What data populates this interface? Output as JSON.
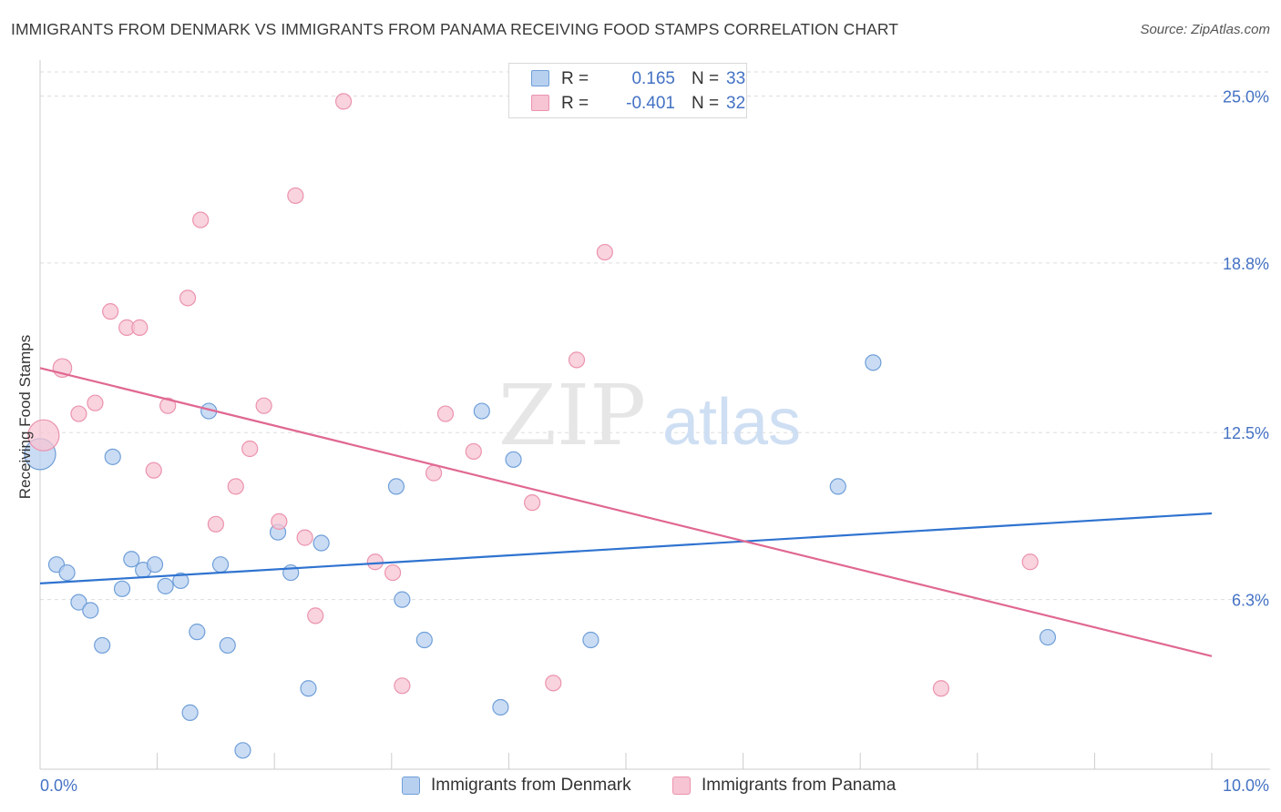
{
  "header": {
    "title": "IMMIGRANTS FROM DENMARK VS IMMIGRANTS FROM PANAMA RECEIVING FOOD STAMPS CORRELATION CHART",
    "source": "Source: ZipAtlas.com"
  },
  "watermark": {
    "zip": "ZIP",
    "atlas": "atlas"
  },
  "legend": {
    "rows": [
      {
        "r_label": "R =",
        "r_value": "0.165",
        "n_label": "N =",
        "n_value": "33"
      },
      {
        "r_label": "R =",
        "r_value": "-0.401",
        "n_label": "N =",
        "n_value": "32"
      }
    ]
  },
  "bottom_legend": {
    "denmark": "Immigrants from Denmark",
    "panama": "Immigrants from Panama"
  },
  "colors": {
    "denmark_fill": "#b8d0f0",
    "denmark_stroke": "#6f9fd8",
    "denmark_line": "#2f73d0",
    "panama_fill": "#f7c4d3",
    "panama_stroke": "#eb93ae",
    "panama_line": "#e06892",
    "tick_text": "#4472c4",
    "grid": "#dddddd"
  },
  "chart_data": {
    "type": "scatter",
    "title": "IMMIGRANTS FROM DENMARK VS IMMIGRANTS FROM PANAMA RECEIVING FOOD STAMPS CORRELATION CHART",
    "xlabel": "",
    "ylabel": "Receiving Food Stamps",
    "xlim": [
      0,
      10
    ],
    "ylim": [
      0,
      26.2
    ],
    "x_tick_labels": [
      "0.0%",
      "10.0%"
    ],
    "y_ticks": [
      6.3,
      12.5,
      18.8,
      25.0
    ],
    "y_tick_labels": [
      "6.3%",
      "12.5%",
      "18.8%",
      "25.0%"
    ],
    "grid": "horizontal dashed",
    "legend_position": "top-center",
    "series": [
      {
        "name": "Immigrants from Denmark",
        "r": 0.165,
        "n": 33,
        "trend": [
          [
            0,
            6.9
          ],
          [
            10,
            9.5
          ]
        ],
        "points": [
          [
            0.0,
            11.7,
            2
          ],
          [
            0.14,
            7.6,
            1
          ],
          [
            0.23,
            7.3,
            1
          ],
          [
            0.33,
            6.2,
            1
          ],
          [
            0.43,
            5.9,
            1
          ],
          [
            0.53,
            4.6,
            1
          ],
          [
            0.62,
            11.6,
            1
          ],
          [
            0.7,
            6.7,
            1
          ],
          [
            0.78,
            7.8,
            1
          ],
          [
            0.88,
            7.4,
            1
          ],
          [
            0.98,
            7.6,
            1
          ],
          [
            1.07,
            6.8,
            1
          ],
          [
            1.2,
            7.0,
            1
          ],
          [
            1.28,
            2.1,
            1
          ],
          [
            1.34,
            5.1,
            1
          ],
          [
            1.44,
            13.3,
            1
          ],
          [
            1.54,
            7.6,
            1
          ],
          [
            1.6,
            4.6,
            1
          ],
          [
            1.73,
            0.7,
            1
          ],
          [
            2.03,
            8.8,
            1
          ],
          [
            2.14,
            7.3,
            1
          ],
          [
            2.29,
            3.0,
            1
          ],
          [
            2.4,
            8.4,
            1
          ],
          [
            3.04,
            10.5,
            1
          ],
          [
            3.09,
            6.3,
            1
          ],
          [
            3.28,
            4.8,
            1
          ],
          [
            3.77,
            13.3,
            1
          ],
          [
            3.93,
            2.3,
            1
          ],
          [
            4.04,
            11.5,
            1
          ],
          [
            4.7,
            4.8,
            1
          ],
          [
            6.81,
            10.5,
            1
          ],
          [
            7.11,
            15.1,
            1
          ],
          [
            8.6,
            4.9,
            1
          ]
        ]
      },
      {
        "name": "Immigrants from Panama",
        "r": -0.401,
        "n": 32,
        "trend": [
          [
            0,
            14.9
          ],
          [
            10,
            4.2
          ]
        ],
        "points": [
          [
            0.03,
            12.4,
            2
          ],
          [
            0.19,
            14.9,
            1.2
          ],
          [
            0.33,
            13.2,
            1
          ],
          [
            0.47,
            13.6,
            1
          ],
          [
            0.6,
            17.0,
            1
          ],
          [
            0.74,
            16.4,
            1
          ],
          [
            0.85,
            16.4,
            1
          ],
          [
            0.97,
            11.1,
            1
          ],
          [
            1.09,
            13.5,
            1
          ],
          [
            1.26,
            17.5,
            1
          ],
          [
            1.37,
            20.4,
            1
          ],
          [
            1.5,
            9.1,
            1
          ],
          [
            1.67,
            10.5,
            1
          ],
          [
            1.79,
            11.9,
            1
          ],
          [
            1.91,
            13.5,
            1
          ],
          [
            2.04,
            9.2,
            1
          ],
          [
            2.18,
            21.3,
            1
          ],
          [
            2.26,
            8.6,
            1
          ],
          [
            2.35,
            5.7,
            1
          ],
          [
            2.59,
            24.8,
            1
          ],
          [
            2.86,
            7.7,
            1
          ],
          [
            3.01,
            7.3,
            1
          ],
          [
            3.09,
            3.1,
            1
          ],
          [
            3.36,
            11.0,
            1
          ],
          [
            3.46,
            13.2,
            1
          ],
          [
            3.7,
            11.8,
            1
          ],
          [
            4.2,
            9.9,
            1
          ],
          [
            4.38,
            3.2,
            1
          ],
          [
            4.58,
            15.2,
            1
          ],
          [
            4.82,
            19.2,
            1
          ],
          [
            7.69,
            3.0,
            1
          ],
          [
            8.45,
            7.7,
            1
          ]
        ]
      }
    ]
  }
}
